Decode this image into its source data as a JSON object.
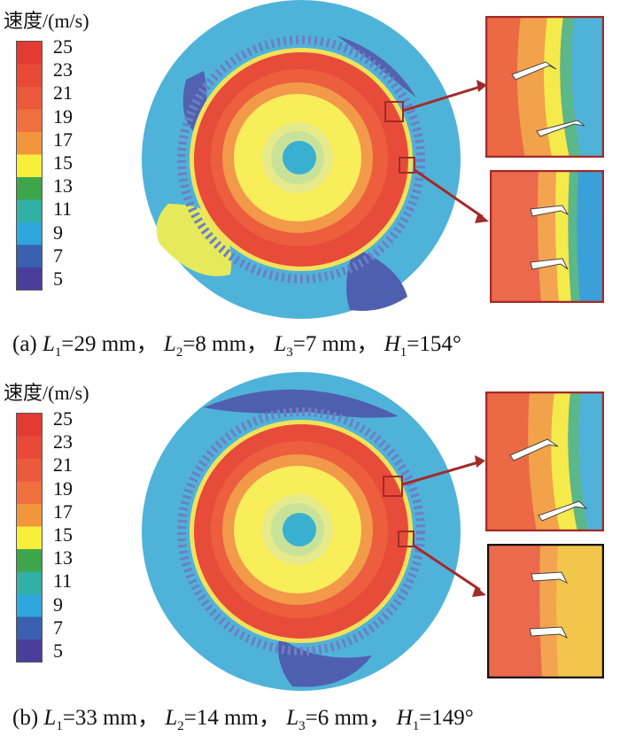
{
  "legend": {
    "title": "速度/(m/s)",
    "labels": [
      "25",
      "23",
      "21",
      "19",
      "17",
      "15",
      "13",
      "11",
      "9",
      "7",
      "5"
    ],
    "colors": [
      "#e23b34",
      "#e84a37",
      "#ec5a3c",
      "#f06f3e",
      "#f2963c",
      "#f7ef3c",
      "#3ea64a",
      "#32b0a6",
      "#2fa6dc",
      "#3a60b0",
      "#4a3e9a"
    ]
  },
  "panels": [
    {
      "id": "a",
      "caption": {
        "prefix": "(a)",
        "L1": "L",
        "L1_sub": "1",
        "L1_val": "=29 mm，",
        "L2": "L",
        "L2_sub": "2",
        "L2_val": "=8 mm，",
        "L3": "L",
        "L3_sub": "3",
        "L3_val": "=7 mm，",
        "H1": "H",
        "H1_sub": "1",
        "H1_val": "=154°"
      }
    },
    {
      "id": "b",
      "caption": {
        "prefix": "(b)",
        "L1": "L",
        "L1_sub": "1",
        "L1_val": "=33 mm，",
        "L2": "L",
        "L2_sub": "2",
        "L2_val": "=14 mm，",
        "L3": "L",
        "L3_sub": "3",
        "L3_val": "=6 mm，",
        "H1": "H",
        "H1_sub": "1",
        "H1_val": "=149°"
      }
    }
  ]
}
